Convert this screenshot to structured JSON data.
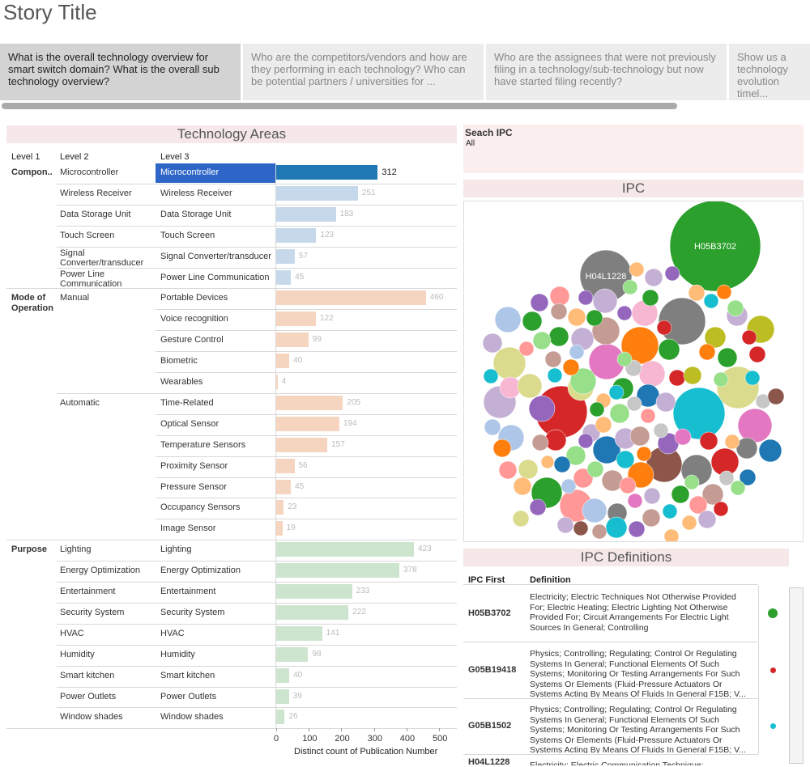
{
  "app": {
    "title": "Story Title"
  },
  "story_tabs": [
    {
      "label": "What is the overall technology overview for smart switch domain? What is the overall sub technology overview?"
    },
    {
      "label": "Who are the competitors/vendors and how are they performing in each technology? Who can be potential partners / universities for ..."
    },
    {
      "label": "Who are the assignees that were not previously filing in a technology/sub-technology but now have started filing recently?"
    },
    {
      "label": "Show us a technology evolution timel..."
    }
  ],
  "tech_areas": {
    "title": "Technology Areas",
    "headers": {
      "level1": "Level 1",
      "level2": "Level 2",
      "level3": "Level 3"
    },
    "axis_title": "Distinct count of Publication Number",
    "selected_level3": "Microcontroller",
    "colors": {
      "selected": "#1f77b4",
      "component": "#c6d9ea",
      "mode": "#f6d5c0",
      "purpose": "#cde5cf",
      "highlight_bg": "#2e66c8"
    }
  },
  "chart_data": {
    "type": "bar",
    "orientation": "horizontal",
    "title": "Technology Areas",
    "xlabel": "Distinct count of Publication Number",
    "xlim": [
      0,
      550
    ],
    "xticks": [
      0,
      100,
      200,
      300,
      400,
      500
    ],
    "groups": [
      {
        "level1": "Compon..",
        "rows": [
          {
            "level2": "Microcontroller",
            "level3": "Microcontroller",
            "value": 312
          },
          {
            "level2": "Wireless Receiver",
            "level3": "Wireless Receiver",
            "value": 251
          },
          {
            "level2": "Data Storage Unit",
            "level3": "Data Storage Unit",
            "value": 183
          },
          {
            "level2": "Touch Screen",
            "level3": "Touch Screen",
            "value": 123
          },
          {
            "level2": "Signal Converter/transducer",
            "level3": "Signal Converter/transducer",
            "value": 57
          },
          {
            "level2": "Power Line Communication",
            "level3": "Power Line Communication",
            "value": 45
          }
        ]
      },
      {
        "level1": "Mode of Operation",
        "rows": [
          {
            "level2": "Manual",
            "level3": "Portable Devices",
            "value": 460
          },
          {
            "level2": "",
            "level3": "Voice recognition",
            "value": 122
          },
          {
            "level2": "",
            "level3": "Gesture Control",
            "value": 99
          },
          {
            "level2": "",
            "level3": "Biometric",
            "value": 40
          },
          {
            "level2": "",
            "level3": "Wearables",
            "value": 4
          },
          {
            "level2": "Automatic",
            "level3": "Time-Related",
            "value": 205
          },
          {
            "level2": "",
            "level3": "Optical Sensor",
            "value": 194
          },
          {
            "level2": "",
            "level3": "Temperature Sensors",
            "value": 157
          },
          {
            "level2": "",
            "level3": "Proximity Sensor",
            "value": 56
          },
          {
            "level2": "",
            "level3": "Pressure Sensor",
            "value": 45
          },
          {
            "level2": "",
            "level3": "Occupancy Sensors",
            "value": 23
          },
          {
            "level2": "",
            "level3": "Image Sensor",
            "value": 19
          }
        ]
      },
      {
        "level1": "Purpose",
        "rows": [
          {
            "level2": "Lighting",
            "level3": "Lighting",
            "value": 423
          },
          {
            "level2": "Energy Optimization",
            "level3": "Energy Optimization",
            "value": 378
          },
          {
            "level2": "Entertainment",
            "level3": "Entertainment",
            "value": 233
          },
          {
            "level2": "Security System",
            "level3": "Security System",
            "value": 222
          },
          {
            "level2": "HVAC",
            "level3": "HVAC",
            "value": 141
          },
          {
            "level2": "Humidity",
            "level3": "Humidity",
            "value": 98
          },
          {
            "level2": "Smart kitchen",
            "level3": "Smart kitchen",
            "value": 40
          },
          {
            "level2": "Power Outlets",
            "level3": "Power Outlets",
            "value": 39
          },
          {
            "level2": "Window shades",
            "level3": "Window shades",
            "value": 26
          }
        ]
      }
    ]
  },
  "search_ipc": {
    "label": "Seach IPC",
    "value": "All"
  },
  "ipc_chart": {
    "title": "IPC",
    "type": "packed-bubble",
    "labeled_bubbles": [
      {
        "label": "H05B3702",
        "color": "#2ca02c"
      },
      {
        "label": "H04L1228",
        "color": "#7f7f7f"
      }
    ]
  },
  "ipc_definitions": {
    "title": "IPC Definitions",
    "headers": {
      "code": "IPC First",
      "definition": "Definition"
    },
    "rows": [
      {
        "code": "H05B3702",
        "definition": "Electricity; Electric Techniques Not Otherwise Provided For; Electric Heating; Electric Lighting Not Otherwise Provided For; Circuit Arrangements For Electric Light Sources In General; Controlling",
        "color": "#2ca02c"
      },
      {
        "code": "G05B19418",
        "definition": "Physics; Controlling; Regulating; Control Or Regulating Systems In General; Functional Elements Of Such Systems; Monitoring Or Testing Arrangements For Such Systems Or Elements (Fluid-Pressure Actuators Or Systems Acting By Means Of Fluids In General F15B; V...",
        "color": "#d62728"
      },
      {
        "code": "G05B1502",
        "definition": "Physics; Controlling; Regulating; Control Or Regulating Systems In General; Functional Elements Of Such Systems; Monitoring Or Testing Arrangements For Such Systems Or Elements (Fluid-Pressure Actuators Or Systems Acting By Means Of Fluids In General F15B; V...",
        "color": "#17becf"
      },
      {
        "code": "H04L1228",
        "definition": "Electricity; Electric Communication Technique;",
        "color": "#7f7f7f"
      }
    ]
  }
}
